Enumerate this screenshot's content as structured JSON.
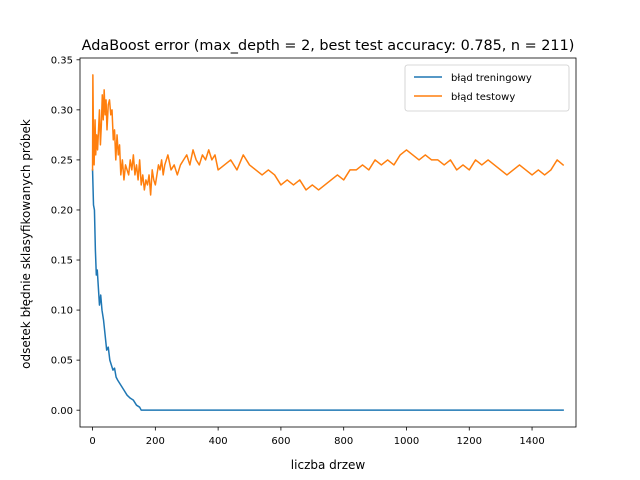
{
  "chart_data": {
    "type": "line",
    "title": "AdaBoost error (max_depth = 2, best test accuracy: 0.785, n = 211)",
    "xlabel": "liczba drzew",
    "ylabel": "odsetek błędnie sklasyfikowanych próbek",
    "xlim": [
      -40,
      1540
    ],
    "ylim": [
      -0.0168,
      0.3518
    ],
    "xticks": [
      0,
      200,
      400,
      600,
      800,
      1000,
      1200,
      1400
    ],
    "yticks": [
      0.0,
      0.05,
      0.1,
      0.15,
      0.2,
      0.25,
      0.3,
      0.35
    ],
    "ytick_labels": [
      "0.00",
      "0.05",
      "0.10",
      "0.15",
      "0.20",
      "0.25",
      "0.30",
      "0.35"
    ],
    "grid": false,
    "legend_position": "top-right",
    "series": [
      {
        "name": "błąd treningowy",
        "color": "#1f77b4",
        "x": [
          0,
          3,
          6,
          9,
          12,
          15,
          18,
          22,
          26,
          30,
          35,
          40,
          45,
          50,
          55,
          60,
          65,
          70,
          75,
          80,
          90,
          100,
          110,
          120,
          130,
          140,
          150,
          155,
          160,
          170,
          200,
          300,
          400,
          500,
          600,
          700,
          800,
          900,
          1000,
          1100,
          1200,
          1300,
          1400,
          1499
        ],
        "y": [
          0.24,
          0.205,
          0.2,
          0.16,
          0.135,
          0.14,
          0.125,
          0.105,
          0.115,
          0.1,
          0.09,
          0.075,
          0.06,
          0.063,
          0.05,
          0.045,
          0.04,
          0.042,
          0.033,
          0.03,
          0.025,
          0.02,
          0.015,
          0.012,
          0.01,
          0.005,
          0.003,
          0.0,
          0.0,
          0.0,
          0.0,
          0.0,
          0.0,
          0.0,
          0.0,
          0.0,
          0.0,
          0.0,
          0.0,
          0.0,
          0.0,
          0.0,
          0.0,
          0.0
        ]
      },
      {
        "name": "błąd testowy",
        "color": "#ff7f0e",
        "x": [
          0,
          1,
          3,
          5,
          8,
          10,
          13,
          16,
          19,
          22,
          25,
          28,
          31,
          34,
          37,
          40,
          43,
          46,
          50,
          54,
          58,
          62,
          66,
          70,
          74,
          78,
          82,
          86,
          90,
          95,
          100,
          105,
          110,
          115,
          120,
          125,
          130,
          135,
          140,
          145,
          150,
          155,
          160,
          165,
          170,
          175,
          180,
          185,
          190,
          195,
          200,
          205,
          210,
          215,
          220,
          225,
          230,
          240,
          250,
          260,
          270,
          280,
          290,
          300,
          310,
          320,
          330,
          340,
          350,
          360,
          370,
          380,
          390,
          400,
          420,
          440,
          460,
          480,
          500,
          520,
          540,
          560,
          580,
          600,
          620,
          640,
          660,
          680,
          700,
          720,
          740,
          760,
          780,
          800,
          820,
          840,
          860,
          880,
          900,
          920,
          940,
          960,
          980,
          1000,
          1020,
          1040,
          1060,
          1080,
          1100,
          1120,
          1140,
          1160,
          1180,
          1200,
          1220,
          1240,
          1260,
          1280,
          1300,
          1320,
          1340,
          1360,
          1380,
          1400,
          1420,
          1440,
          1460,
          1480,
          1499
        ],
        "y": [
          0.24,
          0.335,
          0.27,
          0.245,
          0.29,
          0.255,
          0.275,
          0.26,
          0.28,
          0.3,
          0.265,
          0.285,
          0.315,
          0.29,
          0.32,
          0.295,
          0.31,
          0.28,
          0.305,
          0.31,
          0.295,
          0.3,
          0.27,
          0.28,
          0.25,
          0.275,
          0.255,
          0.265,
          0.235,
          0.25,
          0.23,
          0.245,
          0.24,
          0.235,
          0.25,
          0.24,
          0.255,
          0.235,
          0.245,
          0.23,
          0.25,
          0.225,
          0.235,
          0.22,
          0.23,
          0.225,
          0.235,
          0.215,
          0.24,
          0.23,
          0.225,
          0.235,
          0.245,
          0.24,
          0.25,
          0.235,
          0.245,
          0.255,
          0.24,
          0.245,
          0.235,
          0.245,
          0.25,
          0.255,
          0.245,
          0.26,
          0.25,
          0.245,
          0.255,
          0.25,
          0.26,
          0.25,
          0.255,
          0.24,
          0.245,
          0.25,
          0.24,
          0.255,
          0.245,
          0.24,
          0.235,
          0.24,
          0.235,
          0.225,
          0.23,
          0.225,
          0.23,
          0.22,
          0.225,
          0.22,
          0.225,
          0.23,
          0.235,
          0.23,
          0.24,
          0.24,
          0.245,
          0.24,
          0.25,
          0.245,
          0.25,
          0.245,
          0.255,
          0.26,
          0.255,
          0.25,
          0.255,
          0.25,
          0.25,
          0.245,
          0.25,
          0.24,
          0.245,
          0.24,
          0.25,
          0.245,
          0.25,
          0.245,
          0.24,
          0.235,
          0.24,
          0.245,
          0.24,
          0.235,
          0.24,
          0.235,
          0.24,
          0.25,
          0.245
        ]
      }
    ]
  }
}
